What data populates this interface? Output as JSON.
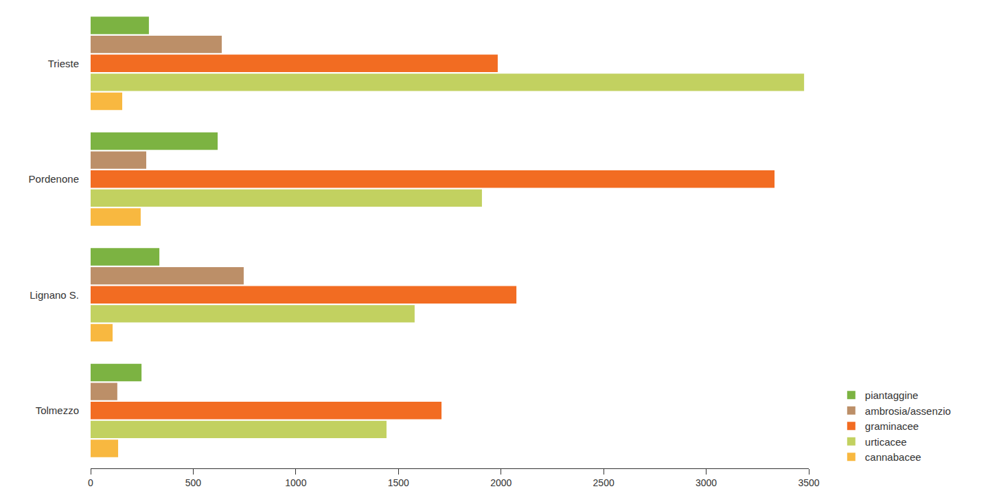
{
  "chart_data": {
    "type": "bar",
    "orientation": "horizontal",
    "categories": [
      "Trieste",
      "Pordenone",
      "Lignano S.",
      "Tolmezzo"
    ],
    "series": [
      {
        "name": "piantaggine",
        "color": "#7cb342",
        "values": [
          284,
          619,
          335,
          248
        ]
      },
      {
        "name": "ambrosia/assenzio",
        "color": "#bc8f68",
        "values": [
          639,
          271,
          746,
          130
        ]
      },
      {
        "name": "graminacee",
        "color": "#f26c22",
        "values": [
          1984,
          3333,
          2075,
          1710
        ]
      },
      {
        "name": "urticacee",
        "color": "#c2d160",
        "values": [
          3477,
          1907,
          1579,
          1442
        ]
      },
      {
        "name": "cannabacee",
        "color": "#f8b840",
        "values": [
          154,
          244,
          107,
          134
        ]
      }
    ],
    "xlim": [
      0,
      3500
    ],
    "xticks": [
      0,
      500,
      1000,
      1500,
      2000,
      2500,
      3000,
      3500
    ],
    "grid": false,
    "legend": "right",
    "data_labels": false
  }
}
